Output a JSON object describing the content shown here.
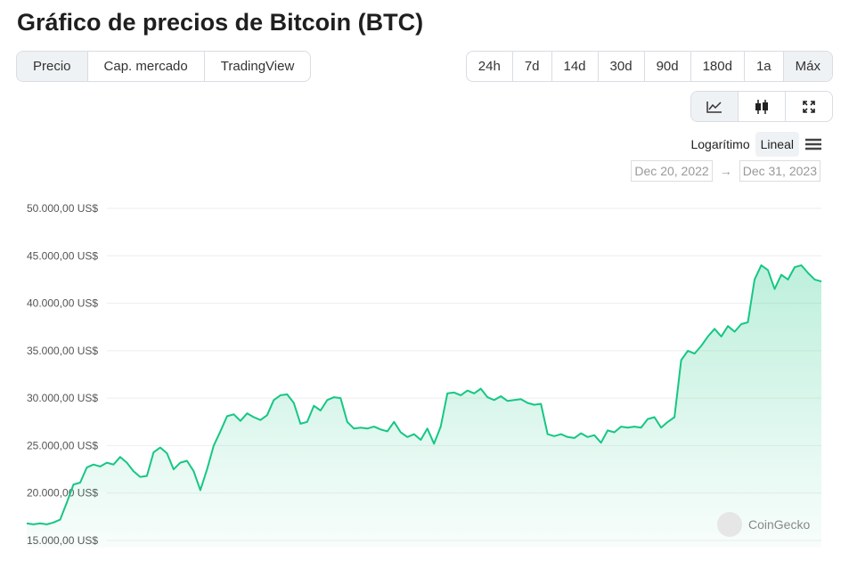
{
  "title": "Gráfico de precios de Bitcoin (BTC)",
  "tabs": [
    "Precio",
    "Cap. mercado",
    "TradingView"
  ],
  "ranges": [
    "24h",
    "7d",
    "14d",
    "30d",
    "90d",
    "180d",
    "1a",
    "Máx"
  ],
  "scale_options": [
    "Logarítimo",
    "Lineal"
  ],
  "date_from": "Dec 20, 2022",
  "date_to": "Dec 31, 2023",
  "watermark": "CoinGecko",
  "chart_data": {
    "type": "line",
    "color": "#16c784",
    "ylim": [
      14250,
      50000
    ],
    "yticks": [
      {
        "value": 15000,
        "label": "15.000,00 US$"
      },
      {
        "value": 20000,
        "label": "20.000,00 US$"
      },
      {
        "value": 25000,
        "label": "25.000,00 US$"
      },
      {
        "value": 30000,
        "label": "30.000,00 US$"
      },
      {
        "value": 35000,
        "label": "35.000,00 US$"
      },
      {
        "value": 40000,
        "label": "40.000,00 US$"
      },
      {
        "value": 45000,
        "label": "45.000,00 US$"
      },
      {
        "value": 50000,
        "label": "50.000,00 US$"
      }
    ],
    "grid": true,
    "values": [
      16800,
      16700,
      16800,
      16700,
      16900,
      17200,
      19000,
      20900,
      21100,
      22700,
      23000,
      22800,
      23200,
      23000,
      23800,
      23200,
      22300,
      21700,
      21800,
      24300,
      24800,
      24200,
      22500,
      23200,
      23400,
      22300,
      20300,
      22500,
      25000,
      26500,
      28100,
      28300,
      27600,
      28400,
      28000,
      27700,
      28200,
      29800,
      30300,
      30400,
      29500,
      27300,
      27500,
      29200,
      28700,
      29800,
      30100,
      30000,
      27500,
      26800,
      26900,
      26800,
      27000,
      26700,
      26500,
      27500,
      26400,
      25900,
      26200,
      25600,
      26800,
      25200,
      27000,
      30500,
      30600,
      30300,
      30800,
      30500,
      31000,
      30100,
      29800,
      30200,
      29700,
      29800,
      29900,
      29500,
      29300,
      29400,
      26200,
      26000,
      26200,
      25900,
      25800,
      26300,
      25900,
      26100,
      25300,
      26600,
      26400,
      27000,
      26900,
      27000,
      26900,
      27800,
      28000,
      26900,
      27500,
      28000,
      34000,
      35000,
      34700,
      35500,
      36500,
      37300,
      36500,
      37600,
      37000,
      37800,
      38000,
      42500,
      44000,
      43500,
      41500,
      43000,
      42500,
      43800,
      44000,
      43200,
      42500,
      42300
    ]
  }
}
